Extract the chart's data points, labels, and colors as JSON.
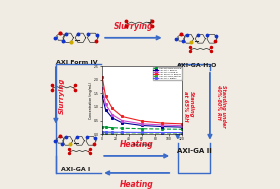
{
  "bg_color": "#f0ece3",
  "box_color": "#3a6bc9",
  "red_text_color": "#e8192c",
  "black_text_color": "#1a1a1a",
  "labels": {
    "axi_form_iv": "AXI Form IV",
    "axi_ga_h2o": "AXI-GA·H₂O",
    "axi_ga_i": "AXI-GA I",
    "axi_ga_ii": "AXI-GA II",
    "slurrying_top": "Slurrying",
    "slurrying_left": "Slurrying",
    "heating_mid": "Heating",
    "heating_bottom": "Heating",
    "standing_65rh": "Standing\nat 65% RH",
    "standing_4080rh": "Standing under\n40%-80% RH",
    "plus": "+"
  },
  "plot": {
    "time": [
      0,
      5,
      15,
      30,
      60,
      90,
      120
    ],
    "series": [
      {
        "label": "AXI-GA·H2O pH6.8",
        "color": "#009933",
        "lw": 0.8,
        "values": [
          0.28,
          0.26,
          0.24,
          0.22,
          0.2,
          0.19,
          0.18
        ],
        "ls": "--",
        "marker": "s"
      },
      {
        "label": "AXI-GA I pH6.8",
        "color": "#000099",
        "lw": 0.8,
        "values": [
          1.4,
          0.9,
          0.6,
          0.42,
          0.32,
          0.28,
          0.26
        ],
        "ls": "-",
        "marker": "s"
      },
      {
        "label": "AXI-GA II pH6.8",
        "color": "#cc44cc",
        "lw": 0.8,
        "values": [
          1.7,
          1.1,
          0.72,
          0.5,
          0.38,
          0.34,
          0.31
        ],
        "ls": "-",
        "marker": "s"
      },
      {
        "label": "AXI Form IV pH6.8",
        "color": "#ee2222",
        "lw": 0.8,
        "values": [
          2.1,
          1.4,
          0.95,
          0.65,
          0.48,
          0.41,
          0.38
        ],
        "ls": "-",
        "marker": "s"
      },
      {
        "label": "AXI-GA·H2O water",
        "color": "#33aa33",
        "lw": 0.8,
        "values": [
          0.06,
          0.055,
          0.05,
          0.048,
          0.045,
          0.043,
          0.042
        ],
        "ls": "--",
        "marker": "s"
      },
      {
        "label": "AXI-GA I water",
        "color": "#5555ff",
        "lw": 0.8,
        "values": [
          0.09,
          0.08,
          0.075,
          0.07,
          0.065,
          0.062,
          0.06
        ],
        "ls": "-",
        "marker": "s"
      }
    ],
    "ylabel": "Concentration (mg/mL)",
    "xlabel": "Time (min)",
    "ylim": [
      0,
      2.5
    ],
    "xlim": [
      0,
      120
    ]
  }
}
